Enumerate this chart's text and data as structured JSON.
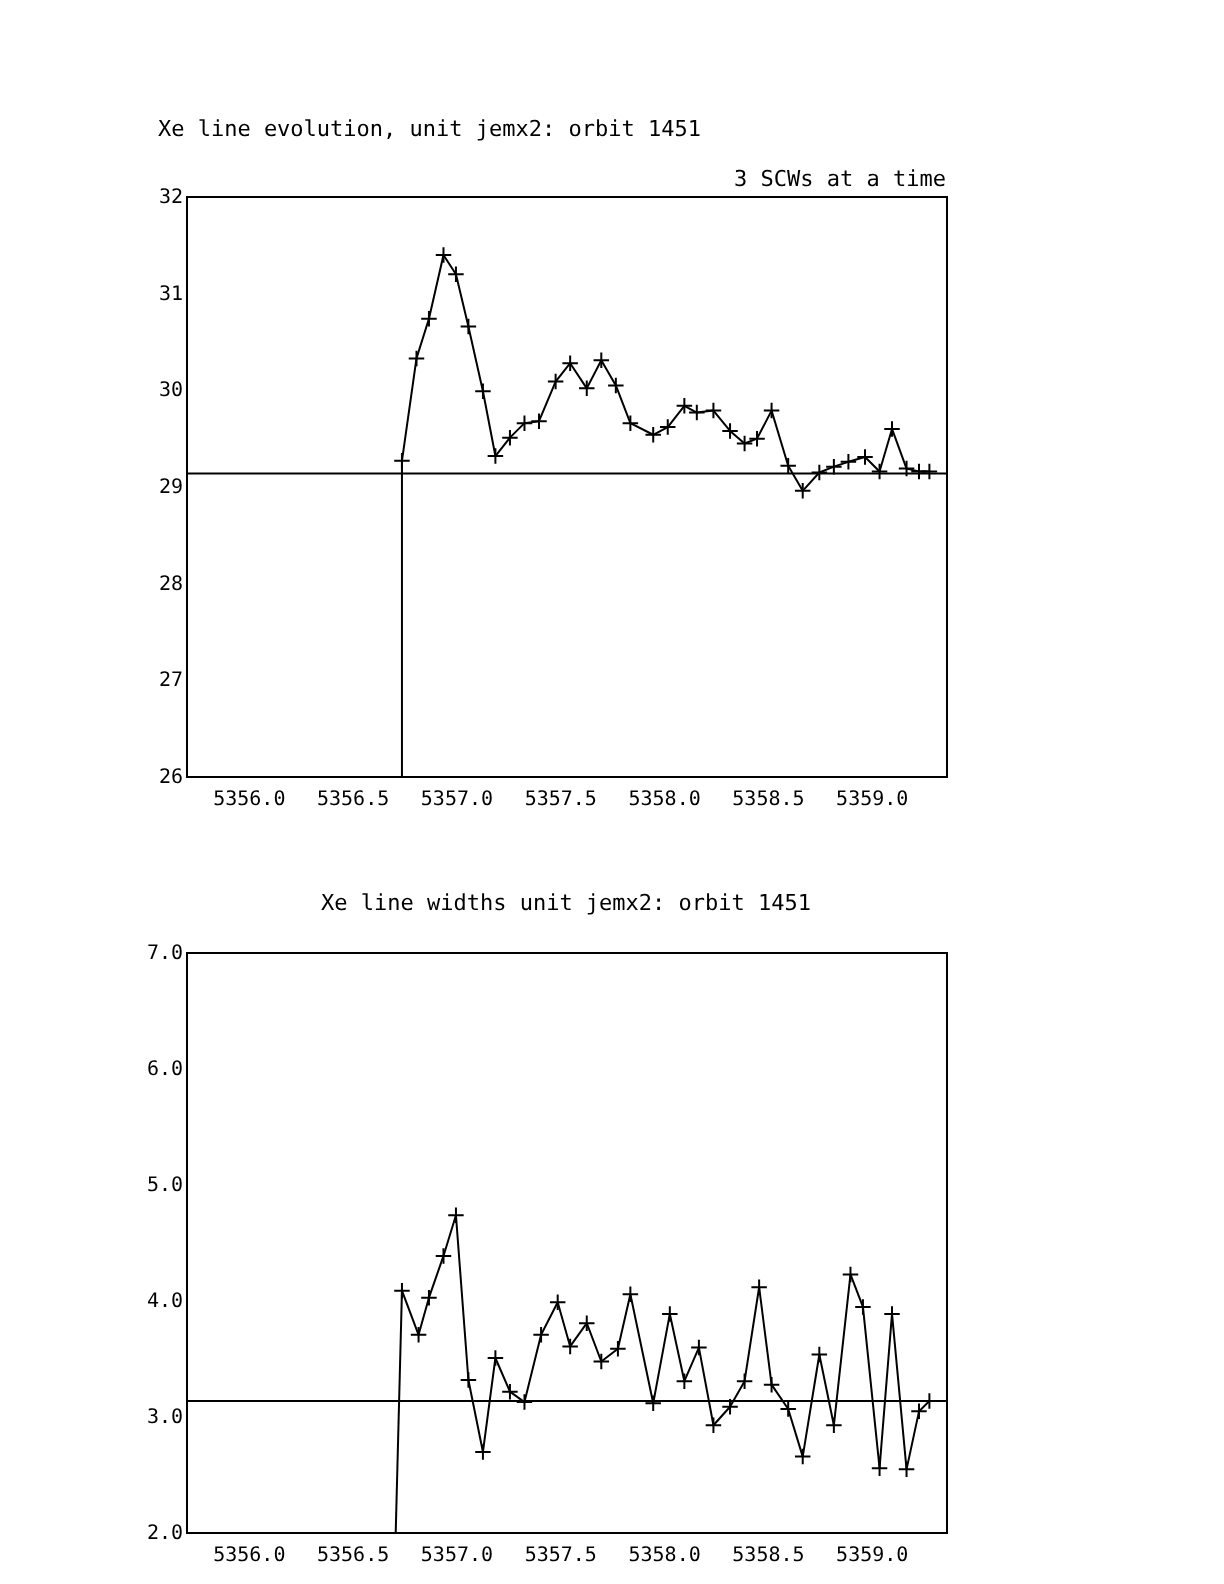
{
  "chart_data": [
    {
      "type": "line",
      "title": "Xe line evolution, unit jemx2: orbit 1451",
      "annotations": [
        "3 SCWs at a time"
      ],
      "xlim": [
        5355.7,
        5359.36
      ],
      "xticks": [
        {
          "value": 5356,
          "label": "5356.0"
        },
        {
          "value": 5356.5,
          "label": "5356.5"
        },
        {
          "value": 5357,
          "label": "5357.0"
        },
        {
          "value": 5357.5,
          "label": "5357.5"
        },
        {
          "value": 5358,
          "label": "5358.0"
        },
        {
          "value": 5358.5,
          "label": "5358.5"
        },
        {
          "value": 5359,
          "label": "5359.0"
        }
      ],
      "ylim": [
        26,
        32
      ],
      "yticks": [
        26,
        27,
        28,
        29,
        30,
        31,
        32
      ],
      "grid": false,
      "ref_lines": [
        {
          "axis": "y",
          "value": 29.13,
          "color": "#000000"
        }
      ],
      "series": [
        {
          "color": "#000000",
          "x": [
            5356.74,
            5356.74
          ],
          "values": [
            26,
            29.26
          ]
        },
        {
          "marker": "cross",
          "color": "#000000",
          "x": [
            5356.74,
            5356.81,
            5356.87,
            5356.94,
            5357.0,
            5357.06,
            5357.13,
            5357.19,
            5357.26,
            5357.33,
            5357.4,
            5357.48,
            5357.55,
            5357.63,
            5357.7,
            5357.77,
            5357.84,
            5357.95,
            5358.02,
            5358.1,
            5358.16,
            5358.24,
            5358.32,
            5358.39,
            5358.45,
            5358.52,
            5358.6,
            5358.67,
            5358.75,
            5358.82,
            5358.89,
            5358.97,
            5359.04,
            5359.1,
            5359.17,
            5359.23,
            5359.28
          ],
          "values": [
            29.26,
            30.32,
            30.73,
            31.39,
            31.19,
            30.65,
            29.98,
            29.31,
            29.5,
            29.65,
            29.67,
            30.08,
            30.27,
            30.01,
            30.3,
            30.04,
            29.65,
            29.53,
            29.61,
            29.83,
            29.76,
            29.78,
            29.57,
            29.44,
            29.49,
            29.78,
            29.21,
            28.95,
            29.14,
            29.2,
            29.25,
            29.3,
            29.15,
            29.59,
            29.18,
            29.15,
            29.15
          ]
        }
      ]
    },
    {
      "type": "line",
      "title": "Xe line widths unit jemx2: orbit 1451",
      "xlim": [
        5355.7,
        5359.36
      ],
      "xticks": [
        {
          "value": 5356,
          "label": "5356.0"
        },
        {
          "value": 5356.5,
          "label": "5356.5"
        },
        {
          "value": 5357,
          "label": "5357.0"
        },
        {
          "value": 5357.5,
          "label": "5357.5"
        },
        {
          "value": 5358,
          "label": "5358.0"
        },
        {
          "value": 5358.5,
          "label": "5358.5"
        },
        {
          "value": 5359,
          "label": "5359.0"
        }
      ],
      "ylim": [
        2,
        7
      ],
      "yticks": [
        {
          "value": 2,
          "label": "2.0"
        },
        {
          "value": 3,
          "label": "3.0"
        },
        {
          "value": 4,
          "label": "4.0"
        },
        {
          "value": 5,
          "label": "5.0"
        },
        {
          "value": 6,
          "label": "6.0"
        },
        {
          "value": 7,
          "label": "7.0"
        }
      ],
      "grid": false,
      "ref_lines": [
        {
          "axis": "y",
          "value": 3.13,
          "color": "#000000"
        }
      ],
      "series": [
        {
          "color": "#000000",
          "x": [
            5356.71,
            5356.74
          ],
          "values": [
            2,
            4.08
          ]
        },
        {
          "marker": "cross",
          "color": "#000000",
          "x": [
            5356.74,
            5356.82,
            5356.87,
            5356.94,
            5357.0,
            5357.06,
            5357.13,
            5357.19,
            5357.26,
            5357.33,
            5357.41,
            5357.49,
            5357.55,
            5357.63,
            5357.7,
            5357.78,
            5357.84,
            5357.95,
            5358.03,
            5358.1,
            5358.17,
            5358.24,
            5358.32,
            5358.39,
            5358.46,
            5358.52,
            5358.6,
            5358.67,
            5358.75,
            5358.82,
            5358.9,
            5358.96,
            5359.04,
            5359.1,
            5359.17,
            5359.23,
            5359.28
          ],
          "values": [
            4.08,
            3.7,
            4.02,
            4.38,
            4.73,
            3.31,
            2.69,
            3.5,
            3.21,
            3.12,
            3.7,
            3.98,
            3.6,
            3.8,
            3.47,
            3.58,
            4.05,
            3.11,
            3.88,
            3.3,
            3.59,
            2.92,
            3.08,
            3.3,
            4.11,
            3.27,
            3.06,
            2.65,
            3.53,
            2.92,
            4.22,
            3.94,
            2.55,
            3.88,
            2.54,
            3.04,
            3.13
          ]
        }
      ]
    }
  ]
}
